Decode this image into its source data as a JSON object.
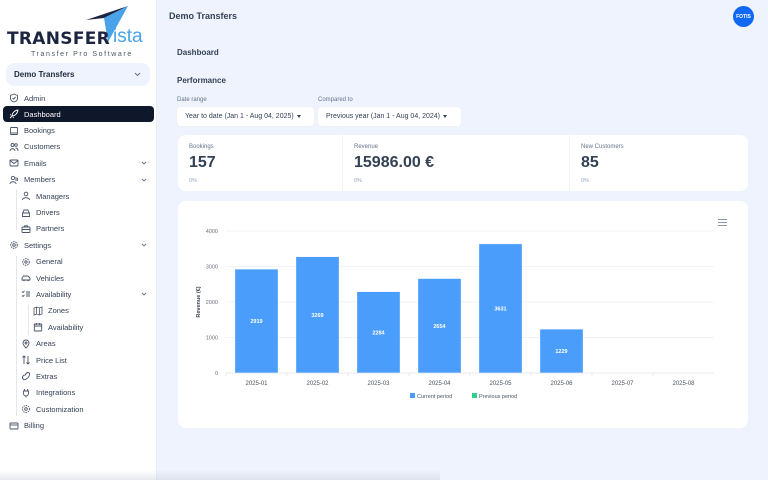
{
  "app": {
    "brand_word": "TRANSFER",
    "brand_suffix": "ista",
    "brand_tagline": "Transfer Pro Software",
    "company_selector": "Demo Transfers"
  },
  "header": {
    "title": "Demo Transfers",
    "avatar_initials": "FOTIS"
  },
  "sidebar": {
    "items": [
      {
        "label": "Admin",
        "icon": "shield-check-icon"
      },
      {
        "label": "Dashboard",
        "icon": "rocket-icon",
        "active": true
      },
      {
        "label": "Bookings",
        "icon": "book-icon"
      },
      {
        "label": "Customers",
        "icon": "users-icon"
      },
      {
        "label": "Emails",
        "icon": "mail-icon",
        "expandable": true
      },
      {
        "label": "Members",
        "icon": "user-group-icon",
        "expandable": true
      },
      {
        "label": "Managers",
        "icon": "user-icon"
      },
      {
        "label": "Drivers",
        "icon": "car-seat-icon"
      },
      {
        "label": "Partners",
        "icon": "briefcase-icon"
      },
      {
        "label": "Settings",
        "icon": "gear-icon",
        "expandable": true
      },
      {
        "label": "General",
        "icon": "cog-icon"
      },
      {
        "label": "Vehicles",
        "icon": "car-icon"
      },
      {
        "label": "Availability",
        "icon": "list-check-icon",
        "expandable": true
      },
      {
        "label": "Zones",
        "icon": "map-icon"
      },
      {
        "label": "Availability",
        "icon": "calendar-icon"
      },
      {
        "label": "Areas",
        "icon": "map-pin-icon"
      },
      {
        "label": "Price List",
        "icon": "arrows-up-down-icon"
      },
      {
        "label": "Extras",
        "icon": "bean-icon"
      },
      {
        "label": "Integrations",
        "icon": "plug-icon"
      },
      {
        "label": "Customization",
        "icon": "settings-icon"
      },
      {
        "label": "Billing",
        "icon": "credit-card-icon"
      }
    ]
  },
  "main": {
    "page_title": "Dashboard",
    "section_title": "Performance",
    "filters": {
      "date_range_label": "Date range",
      "date_range_value": "Year to date (Jan 1 - Aug 04, 2025)",
      "compare_label": "Compared to",
      "compare_value": "Previous year (Jan 1 - Aug 04, 2024)"
    },
    "kpis": [
      {
        "label": "Bookings",
        "value": "157",
        "delta": "0%"
      },
      {
        "label": "Revenue",
        "value": "15986.00 €",
        "delta": "0%"
      },
      {
        "label": "New Customers",
        "value": "85",
        "delta": "0%"
      }
    ]
  },
  "colors": {
    "current_period": "#4a9dfb",
    "previous_period": "#2fd08f",
    "active_nav": "#0f172a",
    "avatar": "#1168f5"
  },
  "chart_data": {
    "type": "bar",
    "title": "",
    "xlabel": "",
    "ylabel": "Revenue (€)",
    "ylim": [
      0,
      4000
    ],
    "yticks": [
      0,
      1000,
      2000,
      3000,
      4000
    ],
    "categories": [
      "2025-01",
      "2025-02",
      "2025-03",
      "2025-04",
      "2025-05",
      "2025-06",
      "2025-07",
      "2025-08"
    ],
    "series": [
      {
        "name": "Current period",
        "values": [
          2919,
          3269,
          2284,
          2654,
          3631,
          1229,
          0,
          0
        ]
      },
      {
        "name": "Previous period",
        "values": [
          0,
          0,
          0,
          0,
          0,
          0,
          0,
          0
        ]
      }
    ],
    "grid": true,
    "legend_position": "bottom",
    "data_labels": true
  }
}
